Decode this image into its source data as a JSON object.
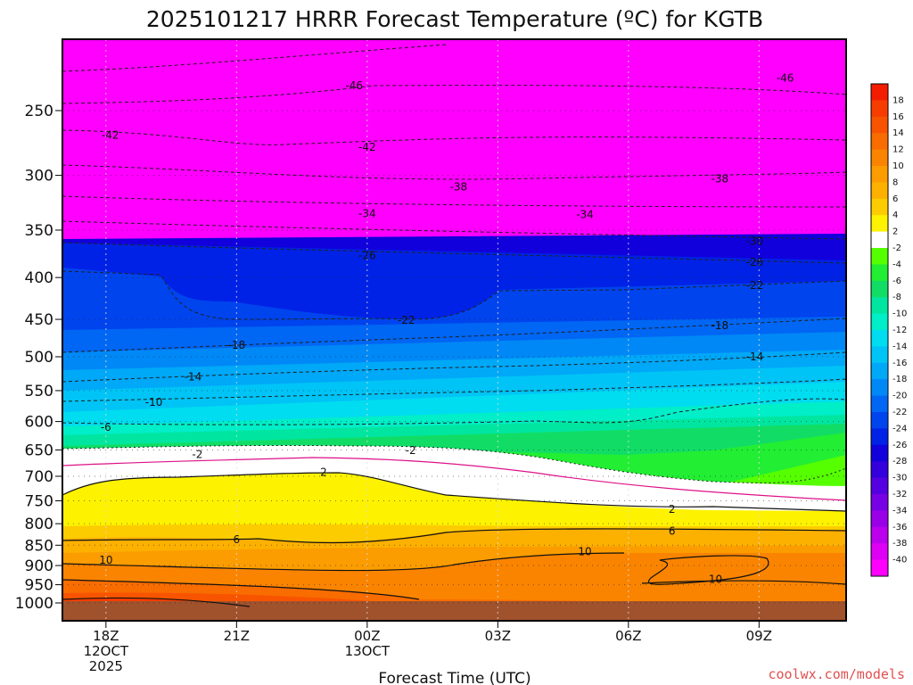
{
  "chart_data": {
    "type": "contour",
    "title": "2025101217 HRRR Forecast Temperature (ºC) for KGTB",
    "xlabel": "Forecast Time (UTC)",
    "ylabel": "",
    "x_ticks": [
      {
        "label": "18Z",
        "sub1": "12OCT",
        "sub2": "2025",
        "hour": 0
      },
      {
        "label": "21Z",
        "sub1": "",
        "sub2": "",
        "hour": 3
      },
      {
        "label": "00Z",
        "sub1": "13OCT",
        "sub2": "",
        "hour": 6
      },
      {
        "label": "03Z",
        "sub1": "",
        "sub2": "",
        "hour": 9
      },
      {
        "label": "06Z",
        "sub1": "",
        "sub2": "",
        "hour": 12
      },
      {
        "label": "09Z",
        "sub1": "",
        "sub2": "",
        "hour": 15
      }
    ],
    "x_range_hours": [
      -1,
      17
    ],
    "y_ticks": [
      "250",
      "300",
      "350",
      "400",
      "450",
      "500",
      "550",
      "600",
      "650",
      "700",
      "750",
      "800",
      "850",
      "900",
      "950",
      "1000"
    ],
    "colorbar": {
      "labels": [
        "18",
        "16",
        "14",
        "12",
        "10",
        "8",
        "6",
        "4",
        "2",
        "-2",
        "-4",
        "-6",
        "-8",
        "-10",
        "-12",
        "-14",
        "-16",
        "-18",
        "-20",
        "-22",
        "-24",
        "-26",
        "-28",
        "-30",
        "-32",
        "-34",
        "-36",
        "-38",
        "-40"
      ],
      "colors": [
        "#f41c00",
        "#f73c00",
        "#f85400",
        "#f86c00",
        "#fa8400",
        "#fb9c00",
        "#fcb000",
        "#fdcc00",
        "#fdf200",
        "#ffffff",
        "#55ff00",
        "#22ee33",
        "#11dd66",
        "#00e6a0",
        "#00eec8",
        "#00dcf0",
        "#00c4f6",
        "#00a8f8",
        "#0088f6",
        "#0066f4",
        "#0044ee",
        "#0022e6",
        "#1100dc",
        "#3300dd",
        "#5500e0",
        "#7700e4",
        "#9900e8",
        "#bb00ee",
        "#dd00f4",
        "#ff00ff"
      ]
    },
    "contour_labels": [
      {
        "text": "-46",
        "hour": 5.7,
        "p": 233
      },
      {
        "text": "-46",
        "hour": 15.6,
        "p": 228
      },
      {
        "text": "-42",
        "hour": 0.1,
        "p": 268
      },
      {
        "text": "-42",
        "hour": 6.0,
        "p": 277
      },
      {
        "text": "-38",
        "hour": 8.1,
        "p": 310
      },
      {
        "text": "-38",
        "hour": 14.1,
        "p": 303
      },
      {
        "text": "-34",
        "hour": 6.0,
        "p": 334
      },
      {
        "text": "-34",
        "hour": 11.0,
        "p": 335
      },
      {
        "text": "-30",
        "hour": 14.9,
        "p": 361
      },
      {
        "text": "-26",
        "hour": 6.0,
        "p": 376
      },
      {
        "text": "-26",
        "hour": 14.9,
        "p": 383
      },
      {
        "text": "-22",
        "hour": 6.9,
        "p": 451
      },
      {
        "text": "-22",
        "hour": 14.9,
        "p": 409
      },
      {
        "text": "-18",
        "hour": 3.0,
        "p": 484
      },
      {
        "text": "-18",
        "hour": 14.1,
        "p": 458
      },
      {
        "text": "-14",
        "hour": 2.0,
        "p": 529
      },
      {
        "text": "-14",
        "hour": 14.9,
        "p": 500
      },
      {
        "text": "-10",
        "hour": 1.1,
        "p": 568
      },
      {
        "text": "-6",
        "hour": 0.0,
        "p": 610
      },
      {
        "text": "-2",
        "hour": 2.1,
        "p": 658
      },
      {
        "text": "-2",
        "hour": 7.0,
        "p": 651
      },
      {
        "text": "2",
        "hour": 5.0,
        "p": 692
      },
      {
        "text": "2",
        "hour": 13.0,
        "p": 768
      },
      {
        "text": "6",
        "hour": 3.0,
        "p": 837
      },
      {
        "text": "6",
        "hour": 13.0,
        "p": 817
      },
      {
        "text": "10",
        "hour": 0.0,
        "p": 886
      },
      {
        "text": "10",
        "hour": 11.0,
        "p": 866
      },
      {
        "text": "10",
        "hour": 14.0,
        "p": 936
      }
    ]
  },
  "credit": "coolwx.com/models"
}
